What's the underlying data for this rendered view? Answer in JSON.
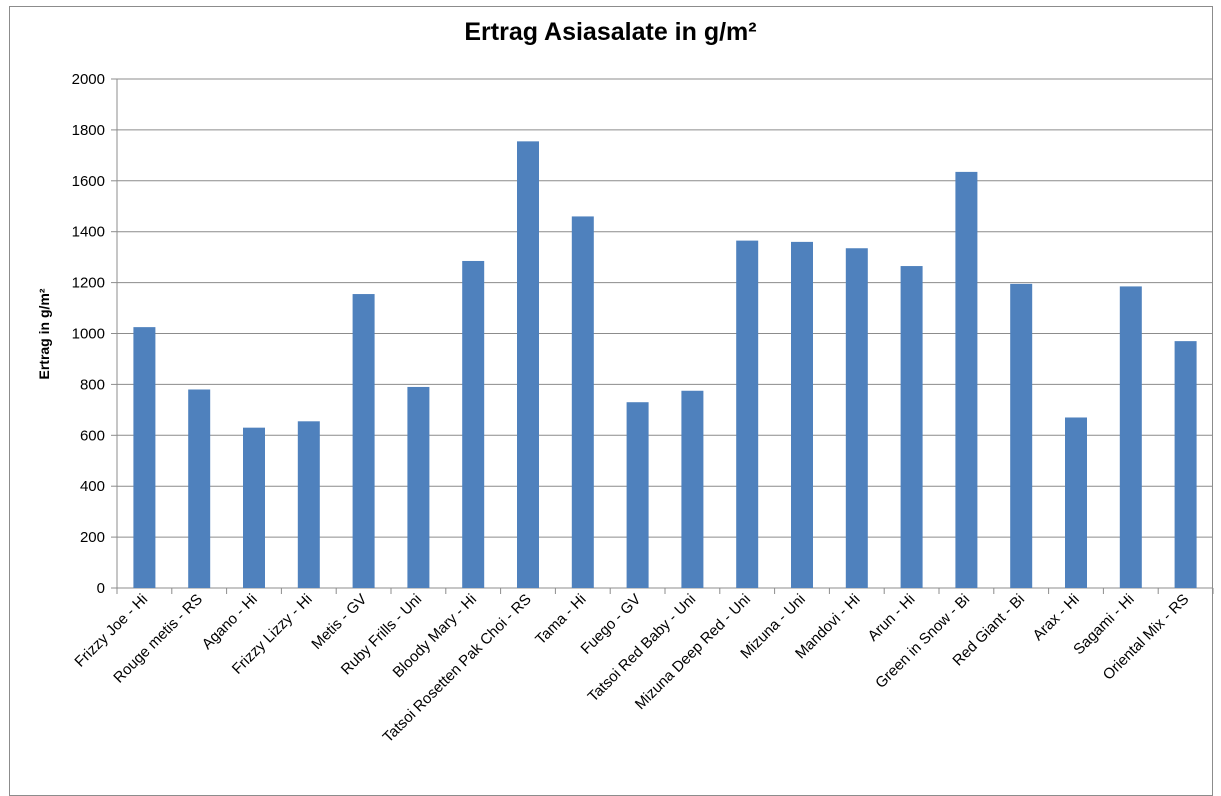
{
  "chart_data": {
    "type": "bar",
    "title": "Ertrag Asiasalate in g/m²",
    "xlabel": "",
    "ylabel": "Ertrag in g/m²",
    "ylim": [
      0,
      2000
    ],
    "yticks": [
      0,
      200,
      400,
      600,
      800,
      1000,
      1200,
      1400,
      1600,
      1800,
      2000
    ],
    "grid": true,
    "legend": "none",
    "bar_color": "#4f81bd",
    "categories": [
      "Frizzy Joe - Hi",
      "Rouge metis - RS",
      "Agano - Hi",
      "Frizzy Lizzy - Hi",
      "Metis - GV",
      "Ruby Frills - Uni",
      "Bloody Mary - Hi",
      "Tatsoi Rosetten Pak Choi - RS",
      "Tama - Hi",
      "Fuego - GV",
      "Tatsoi Red Baby - Uni",
      "Mizuna Deep Red - Uni",
      "Mizuna - Uni",
      "Mandovi - Hi",
      "Arun - Hi",
      "Green in Snow - Bi",
      "Red Giant - Bi",
      "Arax - Hi",
      "Sagami - Hi",
      "Oriental Mix - RS"
    ],
    "values": [
      1025,
      780,
      630,
      655,
      1155,
      790,
      1285,
      1755,
      1460,
      730,
      775,
      1365,
      1360,
      1335,
      1265,
      1635,
      1195,
      670,
      1185,
      970
    ]
  }
}
